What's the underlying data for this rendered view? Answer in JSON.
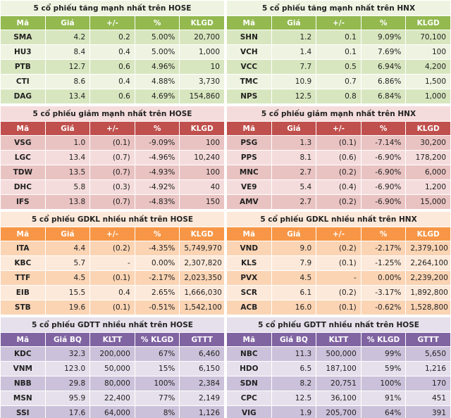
{
  "tables": [
    {
      "title": "5 cổ phiếu tăng mạnh nhất trên HOSE",
      "headers": [
        "Mã",
        "Giá",
        "+/-",
        "%",
        "KLGD"
      ],
      "rows": [
        [
          "SMA",
          "4.2",
          "0.2",
          "5.00%",
          "20,700"
        ],
        [
          "HU3",
          "8.4",
          "0.4",
          "5.00%",
          "1,000"
        ],
        [
          "PTB",
          "12.7",
          "0.6",
          "4.96%",
          "10"
        ],
        [
          "CTI",
          "8.6",
          "0.4",
          "4.88%",
          "3,730"
        ],
        [
          "DAG",
          "13.4",
          "0.6",
          "4.69%",
          "154,860"
        ]
      ]
    },
    {
      "title": "5 cổ phiếu tăng mạnh nhất trên HNX",
      "headers": [
        "Mã",
        "Giá",
        "+/-",
        "%",
        "KLGD"
      ],
      "rows": [
        [
          "SHN",
          "1.2",
          "0.1",
          "9.09%",
          "70,100"
        ],
        [
          "VCH",
          "1.4",
          "0.1",
          "7.69%",
          "100"
        ],
        [
          "VCC",
          "7.7",
          "0.5",
          "6.94%",
          "4,200"
        ],
        [
          "TMC",
          "10.9",
          "0.7",
          "6.86%",
          "1,500"
        ],
        [
          "NPS",
          "12.5",
          "0.8",
          "6.84%",
          "1,000"
        ]
      ]
    },
    {
      "title": "5 cổ phiếu giảm mạnh nhất trên HOSE",
      "headers": [
        "Mã",
        "Giá",
        "+/-",
        "%",
        "KLGD"
      ],
      "rows": [
        [
          "VSG",
          "1.0",
          "(0.1)",
          "-9.09%",
          "100"
        ],
        [
          "LGC",
          "13.4",
          "(0.7)",
          "-4.96%",
          "10,240"
        ],
        [
          "TDW",
          "13.5",
          "(0.7)",
          "-4.93%",
          "100"
        ],
        [
          "DHC",
          "5.8",
          "(0.3)",
          "-4.92%",
          "40"
        ],
        [
          "IFS",
          "13.8",
          "(0.7)",
          "-4.83%",
          "150"
        ]
      ]
    },
    {
      "title": "5 cổ phiếu giảm mạnh nhất trên HNX",
      "headers": [
        "Mã",
        "Giá",
        "+/-",
        "%",
        "KLGD"
      ],
      "rows": [
        [
          "PSG",
          "1.3",
          "(0.1)",
          "-7.14%",
          "30,200"
        ],
        [
          "PPS",
          "8.1",
          "(0.6)",
          "-6.90%",
          "178,200"
        ],
        [
          "MNC",
          "2.7",
          "(0.2)",
          "-6.90%",
          "6,000"
        ],
        [
          "VE9",
          "5.4",
          "(0.4)",
          "-6.90%",
          "1,200"
        ],
        [
          "AMV",
          "2.7",
          "(0.2)",
          "-6.90%",
          "15,000"
        ]
      ]
    },
    {
      "title": "5 cổ phiếu GDKL nhiều nhất trên HOSE",
      "headers": [
        "Mã",
        "Giá",
        "+/-",
        "%",
        "KLGD"
      ],
      "rows": [
        [
          "ITA",
          "4.4",
          "(0.2)",
          "-4.35%",
          "5,749,970"
        ],
        [
          "KBC",
          "5.7",
          "-",
          "0.00%",
          "2,307,820"
        ],
        [
          "TTF",
          "4.5",
          "(0.1)",
          "-2.17%",
          "2,023,350"
        ],
        [
          "EIB",
          "15.5",
          "0.4",
          "2.65%",
          "1,666,030"
        ],
        [
          "STB",
          "19.6",
          "(0.1)",
          "-0.51%",
          "1,542,100"
        ]
      ]
    },
    {
      "title": "5 cổ phiếu GDKL nhiều nhất trên HNX",
      "headers": [
        "Mã",
        "Giá",
        "+/-",
        "%",
        "KLGD"
      ],
      "rows": [
        [
          "VND",
          "9.0",
          "(0.2)",
          "-2.17%",
          "2,379,100"
        ],
        [
          "KLS",
          "7.9",
          "(0.1)",
          "-1.25%",
          "2,264,100"
        ],
        [
          "PVX",
          "4.5",
          "-",
          "0.00%",
          "2,239,200"
        ],
        [
          "SCR",
          "6.1",
          "(0.2)",
          "-3.17%",
          "1,892,800"
        ],
        [
          "ACB",
          "16.0",
          "(0.1)",
          "-0.62%",
          "1,528,800"
        ]
      ]
    },
    {
      "title": "5 cổ phiếu GDTT nhiều nhất trên HOSE",
      "headers": [
        "Mã",
        "Giá BQ",
        "KLTT",
        "% KLGD",
        "GTTT"
      ],
      "rows": [
        [
          "KDC",
          "32.3",
          "200,000",
          "67%",
          "6,460"
        ],
        [
          "VNM",
          "123.0",
          "50,000",
          "15%",
          "6,150"
        ],
        [
          "NBB",
          "29.8",
          "80,000",
          "100%",
          "2,384"
        ],
        [
          "MSN",
          "95.9",
          "22,400",
          "77%",
          "2,149"
        ],
        [
          "SSI",
          "17.6",
          "64,000",
          "8%",
          "1,126"
        ]
      ]
    },
    {
      "title": "5 cổ phiếu GDTT nhiều nhất trên HOSE",
      "headers": [
        "Mã",
        "Giá BQ",
        "KLTT",
        "% KLGD",
        "GTTT"
      ],
      "rows": [
        [
          "NBC",
          "11.3",
          "500,000",
          "99%",
          "5,650"
        ],
        [
          "HDO",
          "6.5",
          "187,100",
          "59%",
          "1,216"
        ],
        [
          "SDN",
          "8.2",
          "20,751",
          "100%",
          "170"
        ],
        [
          "CPC",
          "12.5",
          "36,100",
          "91%",
          "451"
        ],
        [
          "VIG",
          "1.9",
          "205,700",
          "64%",
          "391"
        ]
      ]
    }
  ]
}
